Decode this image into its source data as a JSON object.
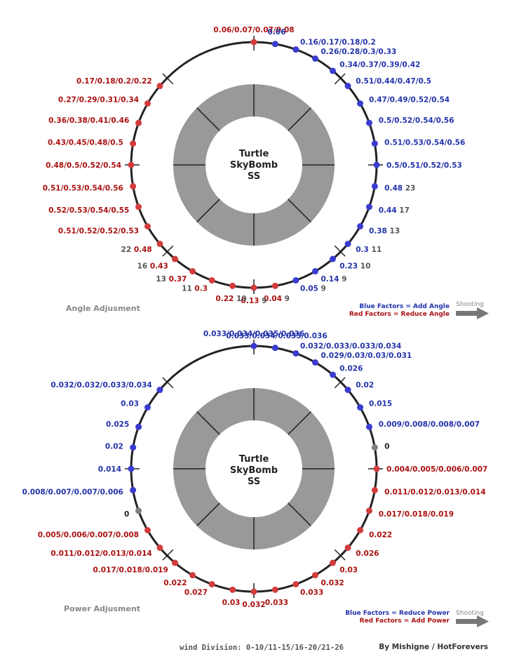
{
  "colors": {
    "blue": "#2233aa",
    "red": "#aa1111",
    "blue_dot": "#3b3bd1",
    "red_dot": "#d33c3c",
    "gray_dot": "#808080",
    "wind_gray": "#555555",
    "ring": "#999999",
    "circle": "#222222"
  },
  "diagrams": [
    {
      "id": "angle",
      "title": "Angle Adjusment",
      "center_label": [
        "Turtle",
        "SkyBomb",
        "SS"
      ],
      "legend_blue": "Blue Factors = Add Angle",
      "legend_red": "Red Factors = Reduce Angle",
      "shooting_label": "Shooting",
      "labels": [
        {
          "deg": 0,
          "color": "red",
          "text": "0.06/0.07/0.07/0.08",
          "wind": ""
        },
        {
          "deg": 10,
          "color": "blue",
          "text": "0.06",
          "wind": ""
        },
        {
          "deg": 20,
          "color": "blue",
          "text": "0.16/0.17/0.18/0.2",
          "wind": ""
        },
        {
          "deg": 30,
          "color": "blue",
          "text": "0.26/0.28/0.3/0.33",
          "wind": ""
        },
        {
          "deg": 40,
          "color": "blue",
          "text": "0.34/0.37/0.39/0.42",
          "wind": ""
        },
        {
          "deg": 50,
          "color": "blue",
          "text": "0.51/0.44/0.47/0.5",
          "wind": ""
        },
        {
          "deg": 60,
          "color": "blue",
          "text": "0.47/0.49/0.52/0.54",
          "wind": ""
        },
        {
          "deg": 70,
          "color": "blue",
          "text": "0.5/0.52/0.54/0.56",
          "wind": ""
        },
        {
          "deg": 80,
          "color": "blue",
          "text": "0.51/0.53/0.54/0.56",
          "wind": ""
        },
        {
          "deg": 90,
          "color": "blue",
          "text": "0.5/0.51/0.52/0.53",
          "wind": ""
        },
        {
          "deg": 100,
          "color": "blue",
          "text": "0.48",
          "wind": "23"
        },
        {
          "deg": 110,
          "color": "blue",
          "text": "0.44",
          "wind": "17"
        },
        {
          "deg": 120,
          "color": "blue",
          "text": "0.38",
          "wind": "13"
        },
        {
          "deg": 130,
          "color": "blue",
          "text": "0.3",
          "wind": "11"
        },
        {
          "deg": 140,
          "color": "blue",
          "text": "0.23",
          "wind": "10"
        },
        {
          "deg": 150,
          "color": "blue",
          "text": "0.14",
          "wind": "9"
        },
        {
          "deg": 160,
          "color": "blue",
          "text": "0.05",
          "wind": "9"
        },
        {
          "deg": 170,
          "color": "red",
          "text": "0.04",
          "wind": "9"
        },
        {
          "deg": 180,
          "color": "red",
          "text": "0.13",
          "wind": "9"
        },
        {
          "deg": 190,
          "color": "red",
          "text": "0.22",
          "wind": "10"
        },
        {
          "deg": 200,
          "color": "red",
          "text": "0.3",
          "wind": "11"
        },
        {
          "deg": 210,
          "color": "red",
          "text": "0.37",
          "wind": "13"
        },
        {
          "deg": 220,
          "color": "red",
          "text": "0.43",
          "wind": "16"
        },
        {
          "deg": 230,
          "color": "red",
          "text": "0.48",
          "wind": "22"
        },
        {
          "deg": 240,
          "color": "red",
          "text": "0.51/0.52/0.52/0.53",
          "wind": ""
        },
        {
          "deg": 250,
          "color": "red",
          "text": "0.52/0.53/0.54/0.55",
          "wind": ""
        },
        {
          "deg": 260,
          "color": "red",
          "text": "0.51/0.53/0.54/0.56",
          "wind": ""
        },
        {
          "deg": 270,
          "color": "red",
          "text": "0.48/0.5/0.52/0.54",
          "wind": ""
        },
        {
          "deg": 280,
          "color": "red",
          "text": "0.43/0.45/0.48/0.5",
          "wind": ""
        },
        {
          "deg": 290,
          "color": "red",
          "text": "0.36/0.38/0.41/0.46",
          "wind": ""
        },
        {
          "deg": 300,
          "color": "red",
          "text": "0.27/0.29/0.31/0.34",
          "wind": ""
        },
        {
          "deg": 310,
          "color": "red",
          "text": "0.17/0.18/0.2/0.22",
          "wind": ""
        }
      ]
    },
    {
      "id": "power",
      "title": "Power Adjusment",
      "center_label": [
        "Turtle",
        "SkyBomb",
        "SS"
      ],
      "legend_blue": "Blue Factors = Reduce Power",
      "legend_red": "Red Factors = Add Power",
      "shooting_label": "Shooting",
      "labels": [
        {
          "deg": 0,
          "color": "blue",
          "text": "0.033/0.034/0.035/0.036",
          "wind": ""
        },
        {
          "deg": 10,
          "color": "blue",
          "text": "0.033/0.034/0.035/0.036",
          "wind": ""
        },
        {
          "deg": 20,
          "color": "blue",
          "text": "0.032/0.033/0.033/0.034",
          "wind": ""
        },
        {
          "deg": 30,
          "color": "blue",
          "text": "0.029/0.03/0.03/0.031",
          "wind": ""
        },
        {
          "deg": 40,
          "color": "blue",
          "text": "0.026",
          "wind": ""
        },
        {
          "deg": 50,
          "color": "blue",
          "text": "0.02",
          "wind": ""
        },
        {
          "deg": 60,
          "color": "blue",
          "text": "0.015",
          "wind": ""
        },
        {
          "deg": 70,
          "color": "blue",
          "text": "0.009/0.008/0.008/0.007",
          "wind": ""
        },
        {
          "deg": 80,
          "color": "gray",
          "text": "0",
          "wind": ""
        },
        {
          "deg": 90,
          "color": "red",
          "text": "0.004/0.005/0.006/0.007",
          "wind": ""
        },
        {
          "deg": 100,
          "color": "red",
          "text": "0.011/0.012/0.013/0.014",
          "wind": ""
        },
        {
          "deg": 110,
          "color": "red",
          "text": "0.017/0.018/0.019",
          "wind": ""
        },
        {
          "deg": 120,
          "color": "red",
          "text": "0.022",
          "wind": ""
        },
        {
          "deg": 130,
          "color": "red",
          "text": "0.026",
          "wind": ""
        },
        {
          "deg": 140,
          "color": "red",
          "text": "0.03",
          "wind": ""
        },
        {
          "deg": 150,
          "color": "red",
          "text": "0.032",
          "wind": ""
        },
        {
          "deg": 160,
          "color": "red",
          "text": "0.033",
          "wind": ""
        },
        {
          "deg": 170,
          "color": "red",
          "text": "0.033",
          "wind": ""
        },
        {
          "deg": 180,
          "color": "red",
          "text": "0.032",
          "wind": ""
        },
        {
          "deg": 190,
          "color": "red",
          "text": "0.03",
          "wind": ""
        },
        {
          "deg": 200,
          "color": "red",
          "text": "0.027",
          "wind": ""
        },
        {
          "deg": 210,
          "color": "red",
          "text": "0.022",
          "wind": ""
        },
        {
          "deg": 220,
          "color": "red",
          "text": "0.017/0.018/0.019",
          "wind": ""
        },
        {
          "deg": 230,
          "color": "red",
          "text": "0.011/0.012/0.013/0.014",
          "wind": ""
        },
        {
          "deg": 240,
          "color": "red",
          "text": "0.005/0.006/0.007/0.008",
          "wind": ""
        },
        {
          "deg": 250,
          "color": "gray",
          "text": "0",
          "wind": ""
        },
        {
          "deg": 260,
          "color": "blue",
          "text": "0.008/0.007/0.007/0.006",
          "wind": ""
        },
        {
          "deg": 270,
          "color": "blue",
          "text": "0.014",
          "wind": ""
        },
        {
          "deg": 280,
          "color": "blue",
          "text": "0.02",
          "wind": ""
        },
        {
          "deg": 290,
          "color": "blue",
          "text": "0.025",
          "wind": ""
        },
        {
          "deg": 300,
          "color": "blue",
          "text": "0.03",
          "wind": ""
        },
        {
          "deg": 310,
          "color": "blue",
          "text": "0.032/0.032/0.033/0.034",
          "wind": ""
        }
      ]
    }
  ],
  "footer": {
    "wind_division": "wind Division: 0-10/11-15/16-20/21-26",
    "credit": "By Mishigne / HotForevers"
  }
}
